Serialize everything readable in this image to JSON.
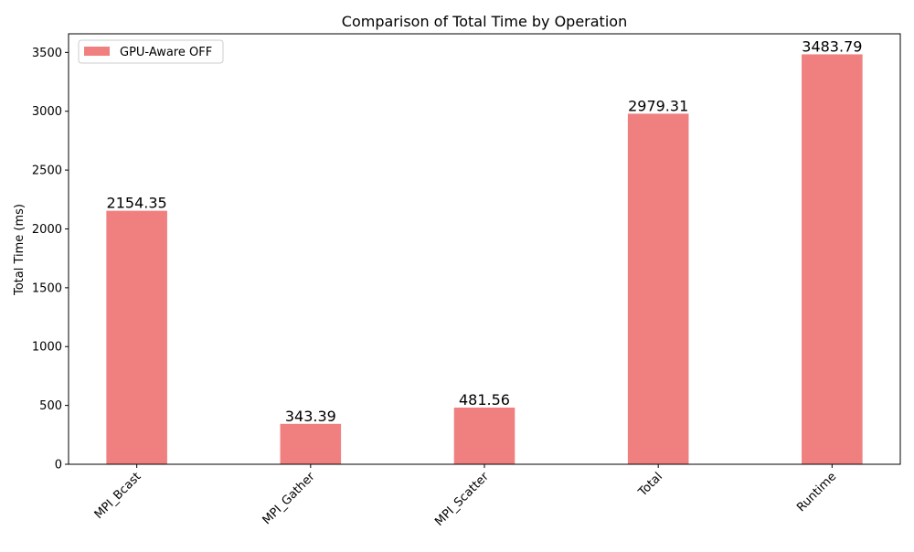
{
  "chart_data": {
    "type": "bar",
    "title": "Comparison of Total Time by Operation",
    "xlabel": "",
    "ylabel": "Total Time (ms)",
    "categories": [
      "MPI_Bcast",
      "MPI_Gather",
      "MPI_Scatter",
      "Total",
      "Runtime"
    ],
    "series": [
      {
        "name": "GPU-Aware OFF",
        "values": [
          2154.35,
          343.39,
          481.56,
          2979.31,
          3483.79
        ],
        "color": "#F08080"
      }
    ],
    "data_labels": [
      "2154.35",
      "343.39",
      "481.56",
      "2979.31",
      "3483.79"
    ],
    "ylim": [
      0,
      3658
    ],
    "yticks": [
      0,
      500,
      1000,
      1500,
      2000,
      2500,
      3000,
      3500
    ],
    "grid": false,
    "legend_position": "top-left"
  }
}
